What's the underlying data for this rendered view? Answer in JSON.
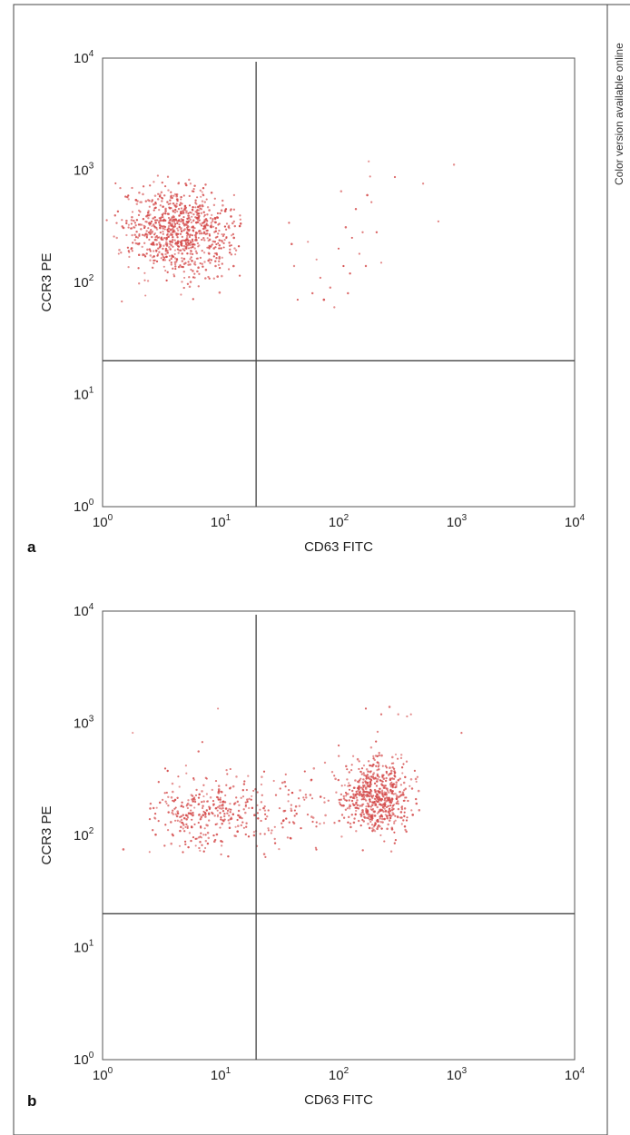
{
  "side_note": "Color version available online",
  "marker_color": "#d44a4a",
  "chart_data": [
    {
      "type": "scatter",
      "panel_label": "a",
      "xlabel": "CD63 FITC",
      "ylabel": "CCR3 PE",
      "x_scale": "log",
      "y_scale": "log",
      "xlim": [
        1,
        10000
      ],
      "ylim": [
        1,
        10000
      ],
      "x_ticks": [
        {
          "base": "10",
          "exp": "0"
        },
        {
          "base": "10",
          "exp": "1"
        },
        {
          "base": "10",
          "exp": "2"
        },
        {
          "base": "10",
          "exp": "3"
        },
        {
          "base": "10",
          "exp": "4"
        }
      ],
      "y_ticks": [
        {
          "base": "10",
          "exp": "0"
        },
        {
          "base": "10",
          "exp": "1"
        },
        {
          "base": "10",
          "exp": "2"
        },
        {
          "base": "10",
          "exp": "3"
        },
        {
          "base": "10",
          "exp": "4"
        }
      ],
      "quadrant_gate": {
        "x": 20,
        "y": 20
      },
      "grid": false,
      "clusters": [
        {
          "center_x": 4.5,
          "center_y": 290,
          "spread_log_x": 0.25,
          "spread_log_y": 0.2,
          "count": 850,
          "range_x": [
            1,
            15
          ],
          "range_y": [
            55,
            950
          ]
        }
      ],
      "points": [
        [
          38,
          340
        ],
        [
          40,
          220
        ],
        [
          42,
          140
        ],
        [
          45,
          70
        ],
        [
          55,
          230
        ],
        [
          60,
          80
        ],
        [
          65,
          160
        ],
        [
          70,
          110
        ],
        [
          75,
          70
        ],
        [
          85,
          90
        ],
        [
          92,
          60
        ],
        [
          100,
          200
        ],
        [
          105,
          650
        ],
        [
          110,
          140
        ],
        [
          115,
          310
        ],
        [
          120,
          80
        ],
        [
          125,
          120
        ],
        [
          130,
          250
        ],
        [
          140,
          450
        ],
        [
          150,
          180
        ],
        [
          160,
          280
        ],
        [
          170,
          140
        ],
        [
          175,
          600
        ],
        [
          180,
          1200
        ],
        [
          185,
          880
        ],
        [
          190,
          520
        ],
        [
          210,
          280
        ],
        [
          230,
          150
        ],
        [
          300,
          870
        ],
        [
          520,
          760
        ],
        [
          700,
          350
        ],
        [
          950,
          1120
        ]
      ]
    },
    {
      "type": "scatter",
      "panel_label": "b",
      "xlabel": "CD63 FITC",
      "ylabel": "CCR3 PE",
      "x_scale": "log",
      "y_scale": "log",
      "xlim": [
        1,
        10000
      ],
      "ylim": [
        1,
        10000
      ],
      "x_ticks": [
        {
          "base": "10",
          "exp": "0"
        },
        {
          "base": "10",
          "exp": "1"
        },
        {
          "base": "10",
          "exp": "2"
        },
        {
          "base": "10",
          "exp": "3"
        },
        {
          "base": "10",
          "exp": "4"
        }
      ],
      "y_ticks": [
        {
          "base": "10",
          "exp": "0"
        },
        {
          "base": "10",
          "exp": "1"
        },
        {
          "base": "10",
          "exp": "2"
        },
        {
          "base": "10",
          "exp": "3"
        },
        {
          "base": "10",
          "exp": "4"
        }
      ],
      "quadrant_gate": {
        "x": 20,
        "y": 20
      },
      "grid": false,
      "clusters": [
        {
          "center_x": 8,
          "center_y": 160,
          "spread_log_x": 0.3,
          "spread_log_y": 0.17,
          "count": 330,
          "range_x": [
            2.5,
            25
          ],
          "range_y": [
            60,
            420
          ]
        },
        {
          "center_x": 40,
          "center_y": 170,
          "spread_log_x": 0.2,
          "spread_log_y": 0.17,
          "count": 80,
          "range_x": [
            18,
            90
          ],
          "range_y": [
            60,
            520
          ]
        },
        {
          "center_x": 200,
          "center_y": 220,
          "spread_log_x": 0.15,
          "spread_log_y": 0.17,
          "count": 600,
          "range_x": [
            60,
            500
          ],
          "range_y": [
            60,
            900
          ]
        }
      ],
      "points": [
        [
          1.5,
          75
        ],
        [
          1.8,
          820
        ],
        [
          9.5,
          1350
        ],
        [
          7,
          680
        ],
        [
          6.5,
          560
        ],
        [
          170,
          1350
        ],
        [
          270,
          1400
        ],
        [
          320,
          1200
        ],
        [
          410,
          1200
        ],
        [
          1100,
          820
        ],
        [
          230,
          1200
        ],
        [
          380,
          1150
        ]
      ]
    }
  ]
}
